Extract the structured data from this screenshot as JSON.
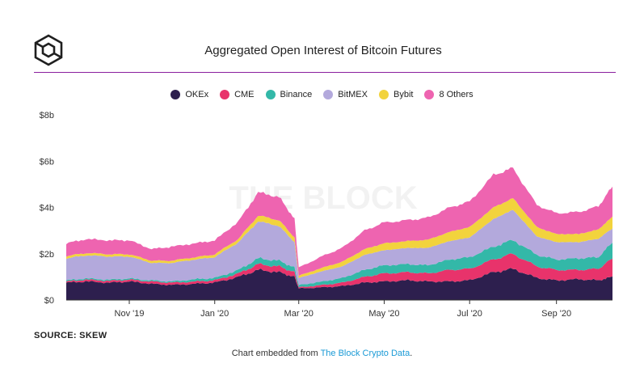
{
  "source": "SOURCE: SKEW",
  "embed": {
    "prefix": "Chart embedded from ",
    "link": "The Block Crypto Data",
    "suffix": "."
  },
  "watermark": "THE BLOCK",
  "chart_data": {
    "type": "area",
    "stacked": true,
    "title": "Aggregated Open Interest of Bitcoin Futures",
    "legend_position": "top-center",
    "grid": false,
    "xlabel": "",
    "ylabel": "",
    "x_ticks": [
      "Nov '19",
      "Jan '20",
      "Mar '20",
      "May '20",
      "Jul '20",
      "Sep '20"
    ],
    "y_ticks": [
      "$0",
      "$2b",
      "$4b",
      "$6b",
      "$8b"
    ],
    "ylim": [
      0,
      8
    ],
    "x": [
      "2019-10-01",
      "2019-10-15",
      "2019-11-01",
      "2019-11-15",
      "2019-12-01",
      "2019-12-15",
      "2020-01-01",
      "2020-01-15",
      "2020-02-01",
      "2020-02-15",
      "2020-03-01",
      "2020-03-12",
      "2020-03-15",
      "2020-04-01",
      "2020-04-15",
      "2020-05-01",
      "2020-05-15",
      "2020-06-01",
      "2020-06-15",
      "2020-07-01",
      "2020-07-15",
      "2020-08-01",
      "2020-08-15",
      "2020-09-01",
      "2020-09-15",
      "2020-10-01",
      "2020-10-15",
      "2020-10-25"
    ],
    "series": [
      {
        "name": "OKEx",
        "color": "#2d1f4e",
        "values": [
          0.75,
          0.8,
          0.75,
          0.8,
          0.7,
          0.65,
          0.7,
          0.75,
          1.0,
          1.3,
          1.2,
          1.0,
          0.5,
          0.55,
          0.6,
          0.75,
          0.8,
          0.85,
          0.8,
          0.8,
          0.85,
          1.2,
          1.35,
          0.95,
          0.85,
          0.9,
          0.85,
          1.0
        ]
      },
      {
        "name": "CME",
        "color": "#e8336b",
        "values": [
          0.05,
          0.08,
          0.08,
          0.08,
          0.1,
          0.1,
          0.1,
          0.1,
          0.15,
          0.25,
          0.25,
          0.2,
          0.05,
          0.1,
          0.15,
          0.25,
          0.35,
          0.35,
          0.35,
          0.5,
          0.5,
          0.55,
          0.65,
          0.5,
          0.45,
          0.4,
          0.5,
          0.8
        ]
      },
      {
        "name": "Binance",
        "color": "#33b8a8",
        "values": [
          0.05,
          0.05,
          0.05,
          0.05,
          0.05,
          0.05,
          0.1,
          0.1,
          0.15,
          0.25,
          0.25,
          0.2,
          0.1,
          0.15,
          0.2,
          0.3,
          0.35,
          0.35,
          0.35,
          0.45,
          0.5,
          0.55,
          0.6,
          0.5,
          0.45,
          0.5,
          0.5,
          0.7
        ]
      },
      {
        "name": "BitMEX",
        "color": "#b3a9dc",
        "values": [
          0.95,
          1.0,
          1.0,
          0.95,
          0.75,
          0.8,
          0.85,
          0.9,
          1.2,
          1.6,
          1.5,
          1.1,
          0.3,
          0.45,
          0.5,
          0.65,
          0.65,
          0.7,
          0.75,
          0.8,
          0.85,
          1.2,
          1.3,
          0.8,
          0.75,
          0.7,
          0.8,
          0.6
        ]
      },
      {
        "name": "Bybit",
        "color": "#f2d33d",
        "values": [
          0.1,
          0.1,
          0.1,
          0.1,
          0.1,
          0.1,
          0.1,
          0.12,
          0.15,
          0.25,
          0.25,
          0.2,
          0.1,
          0.15,
          0.2,
          0.25,
          0.3,
          0.3,
          0.35,
          0.4,
          0.45,
          0.5,
          0.5,
          0.4,
          0.35,
          0.35,
          0.4,
          0.5
        ]
      },
      {
        "name": "8 Others",
        "color": "#ee64b0",
        "values": [
          0.55,
          0.6,
          0.6,
          0.6,
          0.5,
          0.6,
          0.6,
          0.6,
          0.75,
          1.0,
          1.0,
          0.8,
          0.35,
          0.5,
          0.6,
          0.8,
          0.9,
          0.9,
          0.95,
          1.05,
          1.1,
          1.4,
          1.3,
          0.95,
          0.9,
          0.95,
          1.0,
          1.3
        ]
      }
    ]
  }
}
